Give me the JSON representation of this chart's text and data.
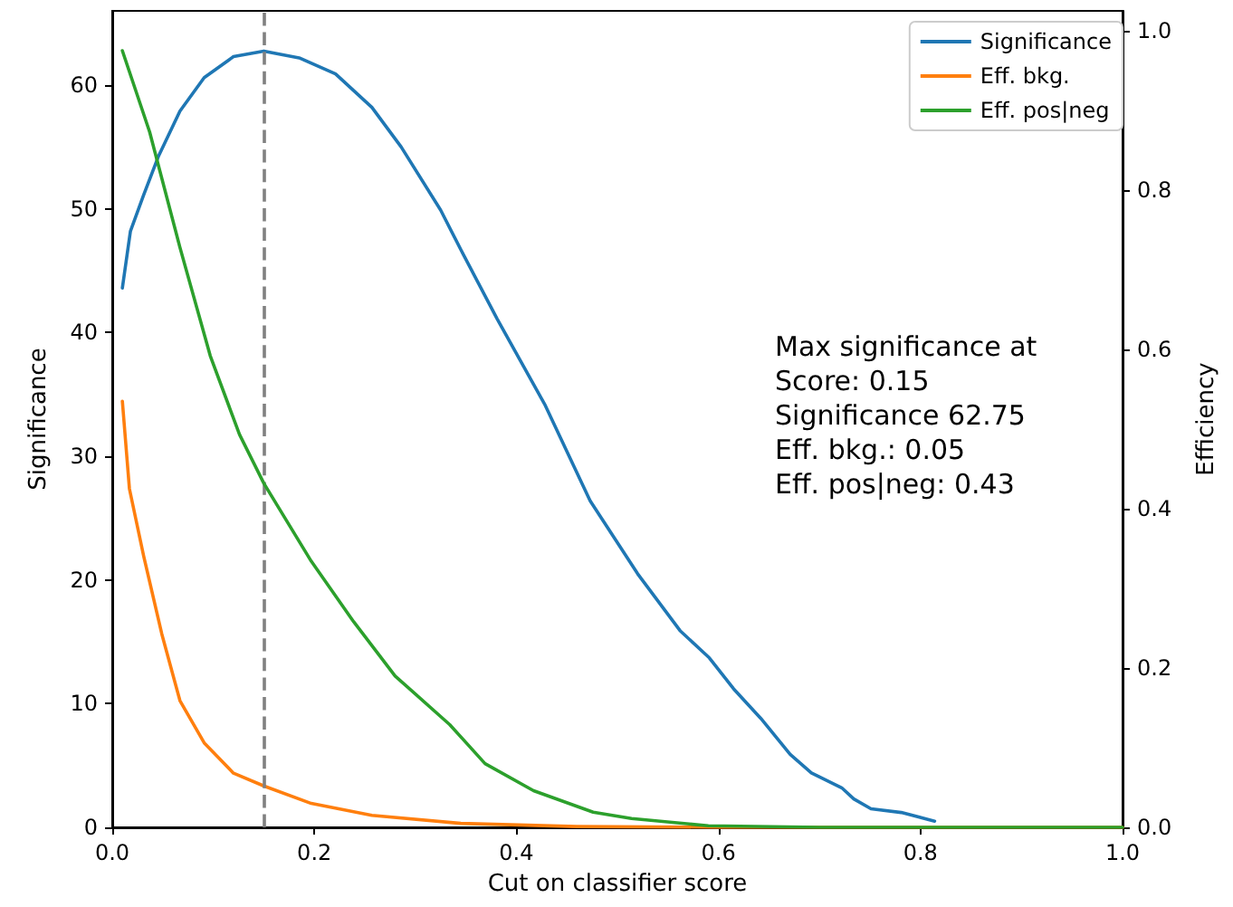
{
  "chart_data": {
    "type": "line",
    "xlabel": "Cut on classifier score",
    "ylabel": "Significance",
    "y2label": "Efficiency",
    "xlim": [
      0,
      1
    ],
    "xticks": [
      {
        "value": 0,
        "label": "0.0"
      },
      0.2,
      0.4,
      0.6,
      0.8,
      {
        "value": 1,
        "label": "1.0"
      }
    ],
    "ylim": [
      0,
      66
    ],
    "yticks": [
      0,
      10,
      20,
      30,
      40,
      50,
      60
    ],
    "y2lim": [
      0,
      1.025
    ],
    "y2ticks": [
      {
        "value": 0,
        "label": "0.0"
      },
      0.2,
      0.4,
      0.6,
      0.8,
      {
        "value": 1,
        "label": "1.0"
      }
    ],
    "grid": false,
    "legend": "top right",
    "marker": "none",
    "line_style": "solid",
    "series": [
      {
        "name": "Significance",
        "color": "#1f77b4",
        "x": [
          0.01,
          0.018,
          0.031,
          0.046,
          0.067,
          0.091,
          0.12,
          0.15,
          0.185,
          0.221,
          0.257,
          0.286,
          0.325,
          0.345,
          0.381,
          0.428,
          0.473,
          0.52,
          0.562,
          0.591,
          0.615,
          0.642,
          0.671,
          0.692,
          0.722,
          0.734,
          0.751,
          0.781,
          0.814
        ],
        "values": [
          43.6,
          48.2,
          51.1,
          54.3,
          57.9,
          60.6,
          62.3,
          62.75,
          62.2,
          60.9,
          58.2,
          55.0,
          49.9,
          46.7,
          41.1,
          34.2,
          26.4,
          20.5,
          15.9,
          13.7,
          11.2,
          8.8,
          5.9,
          4.4,
          3.2,
          2.3,
          1.5,
          1.2,
          0.5
        ]
      },
      {
        "name": "Eff. bkg.",
        "color": "#ff7f0e",
        "axis": "y2",
        "x": [
          0.01,
          0.017,
          0.031,
          0.049,
          0.067,
          0.091,
          0.12,
          0.15,
          0.197,
          0.257,
          0.345,
          0.46,
          0.6,
          0.8,
          1
        ],
        "values": [
          0.535,
          0.425,
          0.341,
          0.243,
          0.159,
          0.106,
          0.068,
          0.052,
          0.03,
          0.015,
          0.005,
          0.001,
          0,
          0,
          0
        ]
      },
      {
        "name": "Eff. pos|neg",
        "color": "#2ca02c",
        "axis": "y2",
        "x": [
          0.01,
          0.037,
          0.067,
          0.097,
          0.126,
          0.15,
          0.197,
          0.239,
          0.28,
          0.334,
          0.369,
          0.417,
          0.476,
          0.514,
          0.59,
          0.7,
          0.85,
          1
        ],
        "values": [
          0.975,
          0.873,
          0.728,
          0.592,
          0.493,
          0.432,
          0.334,
          0.258,
          0.19,
          0.129,
          0.08,
          0.046,
          0.019,
          0.011,
          0.002,
          0,
          0,
          0
        ]
      }
    ],
    "ref_lines": [
      {
        "axis": "x",
        "value": 0.15,
        "color": "#808080",
        "line_style": "dashed"
      }
    ],
    "annotations": [
      "Max significance at\nScore: 0.15\nSignificance 62.75\nEff. bkg.: 0.05\nEff. pos|neg: 0.43"
    ]
  }
}
